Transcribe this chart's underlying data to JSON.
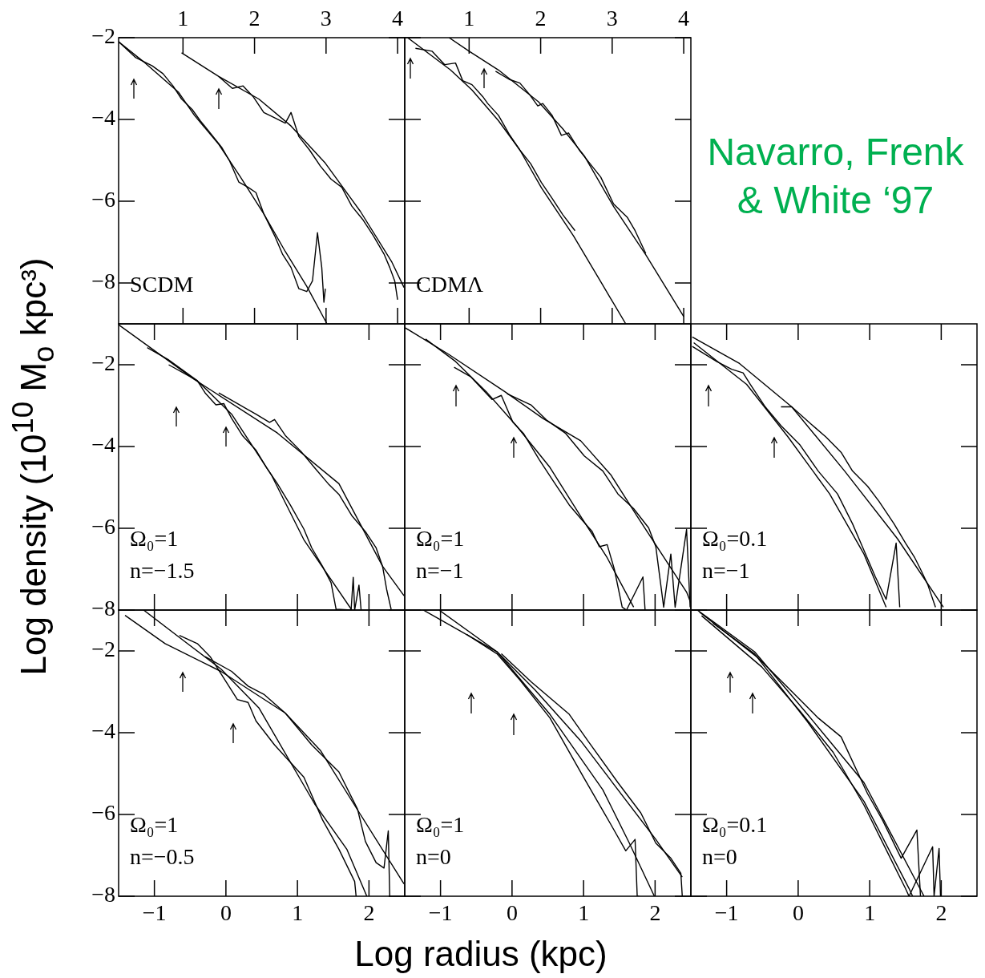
{
  "chart_data": [
    {
      "type": "line",
      "marker": "none",
      "xlim": [
        0.1,
        4.1
      ],
      "xticks": [
        1,
        2,
        3,
        4
      ],
      "ylim": [
        -9,
        -2
      ],
      "yticks": [
        {
          "value": -2,
          "label": "−2"
        },
        {
          "value": -4,
          "label": "−4"
        },
        {
          "value": -6,
          "label": "−6"
        },
        {
          "value": -8,
          "label": "−8"
        }
      ],
      "annotations": [
        "SCDM"
      ],
      "series": [
        {
          "color": "#000000",
          "x": [
            0.1,
            0.45,
            0.94,
            1.16,
            1.5,
            1.8,
            2.13,
            2.43,
            2.73,
            3.01
          ],
          "values": [
            -2.1,
            -2.59,
            -3.34,
            -3.9,
            -4.61,
            -5.4,
            -6.31,
            -7.23,
            -8.08,
            -8.99
          ]
        },
        {
          "color": "#000000",
          "x": [
            0.1,
            0.34,
            0.57,
            0.72,
            0.86,
            0.98,
            1.13,
            1.24,
            1.39,
            1.54,
            1.65,
            1.78,
            1.91,
            2.02,
            2.13,
            2.28,
            2.39,
            2.51,
            2.62,
            2.73,
            2.81,
            2.88,
            2.94,
            2.97,
            2.99
          ],
          "values": [
            -2.1,
            -2.49,
            -2.69,
            -2.88,
            -3.18,
            -3.5,
            -3.76,
            -4.03,
            -4.35,
            -4.68,
            -5.01,
            -5.53,
            -5.66,
            -5.79,
            -6.31,
            -6.84,
            -7.29,
            -7.62,
            -8.14,
            -8.21,
            -7.95,
            -6.77,
            -7.62,
            -8.47,
            -8.14
          ]
        },
        {
          "color": "#000000",
          "x": [
            0.98,
            1.5,
            2.06,
            2.51,
            2.99,
            3.48,
            3.92,
            4.09
          ],
          "values": [
            -2.37,
            -2.95,
            -3.5,
            -4.16,
            -5.07,
            -6.25,
            -7.49,
            -8.11
          ]
        },
        {
          "color": "#000000",
          "x": [
            1.5,
            1.69,
            1.84,
            1.98,
            2.13,
            2.28,
            2.43,
            2.51,
            2.62,
            2.77,
            2.92,
            3.07,
            3.22,
            3.36,
            3.51,
            3.66,
            3.81,
            3.89,
            3.96,
            4.0
          ],
          "values": [
            -2.95,
            -3.24,
            -3.18,
            -3.44,
            -3.83,
            -3.96,
            -4.09,
            -3.83,
            -4.42,
            -4.75,
            -5.14,
            -5.46,
            -5.66,
            -6.12,
            -6.44,
            -6.84,
            -7.29,
            -7.62,
            -7.95,
            -8.41
          ]
        }
      ]
    },
    {
      "type": "line",
      "marker": "none",
      "tick_labels": "x",
      "title": "Navarro, Frenk & White ‘97",
      "xlim": [
        0.1,
        4.1
      ],
      "xticks": [
        1,
        2,
        3,
        4
      ],
      "ylim": [
        -9,
        -2
      ],
      "yticks": [
        {
          "value": -2,
          "label": null
        },
        {
          "value": -4,
          "label": null
        },
        {
          "value": -6,
          "label": null
        },
        {
          "value": -8,
          "label": null
        }
      ],
      "annotations": [
        "CDMΛ"
      ],
      "series": [
        {
          "color": "#000000",
          "x": [
            0.14,
            0.74,
            1.04,
            1.41,
            1.71,
            2.01,
            2.46,
            2.84,
            3.19
          ],
          "values": [
            -2.0,
            -2.79,
            -3.28,
            -4.03,
            -4.75,
            -5.67,
            -6.85,
            -7.97,
            -9.0
          ]
        },
        {
          "color": "#000000",
          "x": [
            0.25,
            0.48,
            0.66,
            0.81,
            0.91,
            1.04,
            1.19,
            1.26,
            1.41,
            1.56,
            1.71,
            1.86,
            2.01,
            2.16,
            2.31,
            2.48
          ],
          "values": [
            -2.26,
            -2.33,
            -2.66,
            -2.62,
            -3.05,
            -3.15,
            -3.44,
            -3.61,
            -3.9,
            -4.36,
            -4.75,
            -5.08,
            -5.54,
            -5.93,
            -6.33,
            -6.72
          ]
        },
        {
          "color": "#000000",
          "x": [
            0.72,
            1.0,
            1.41,
            1.97,
            2.31,
            2.61,
            3.02,
            3.47,
            4.0
          ],
          "values": [
            -2.0,
            -2.33,
            -2.79,
            -3.57,
            -4.23,
            -4.89,
            -6.13,
            -7.31,
            -8.82
          ]
        },
        {
          "color": "#000000",
          "x": [
            1.37,
            1.56,
            1.71,
            1.84,
            1.96,
            2.03,
            2.16,
            2.29,
            2.39,
            2.54,
            2.69,
            2.84,
            3.02,
            3.21,
            3.32,
            3.47
          ],
          "values": [
            -2.82,
            -3.02,
            -3.11,
            -3.38,
            -3.67,
            -3.61,
            -3.9,
            -4.39,
            -4.33,
            -4.75,
            -5.08,
            -5.41,
            -6.07,
            -6.39,
            -6.72,
            -7.28
          ]
        }
      ]
    },
    {
      "type": "line",
      "marker": "none",
      "tick_labels": "y",
      "ylabel": "Log density (10$^{10}$ M$_{o}$ kpc³)",
      "xlim": [
        -1.5,
        2.5
      ],
      "xticks": [
        {
          "value": -1,
          "label": null
        },
        {
          "value": 0,
          "label": null
        },
        {
          "value": 1,
          "label": null
        },
        {
          "value": 2,
          "label": null
        }
      ],
      "ylim": [
        -8,
        -1
      ],
      "yticks": [
        {
          "value": -2,
          "label": "−2"
        },
        {
          "value": -4,
          "label": "−4"
        },
        {
          "value": -6,
          "label": "−6"
        },
        {
          "value": -8,
          "label": "−8"
        }
      ],
      "annotations": [
        "Ω₀=1",
        "n=−1.5"
      ],
      "series": [
        {
          "color": "#000000",
          "x": [
            -1.5,
            -0.44,
            0.72,
            1.58,
            2.19,
            2.49
          ],
          "values": [
            -1.02,
            -2.36,
            -3.67,
            -4.91,
            -6.93,
            -7.65
          ]
        },
        {
          "color": "#000000",
          "x": [
            -0.8,
            -0.4,
            0.08,
            0.64,
            1.09,
            1.76
          ],
          "values": [
            -2.0,
            -2.39,
            -3.21,
            -4.71,
            -6.28,
            -8.0
          ]
        },
        {
          "color": "#000000",
          "x": [
            -1.1,
            -0.81,
            -0.4,
            -0.29,
            -0.14,
            -0.03,
            0.08,
            0.23,
            0.42,
            0.57,
            0.72,
            0.9,
            1.09,
            1.2,
            1.35,
            1.47,
            1.54,
            1.75,
            1.78,
            1.8,
            1.86,
            1.89
          ],
          "values": [
            -1.58,
            -1.87,
            -2.39,
            -2.69,
            -2.98,
            -2.95,
            -3.31,
            -3.73,
            -4.09,
            -4.52,
            -4.91,
            -5.43,
            -6.02,
            -6.48,
            -6.93,
            -7.33,
            -7.98,
            -8.0,
            -7.2,
            -8.0,
            -7.39,
            -8.0
          ]
        },
        {
          "color": "#000000",
          "x": [
            -0.1,
            0.16,
            0.42,
            0.61,
            0.68,
            0.83,
            1.05,
            1.24,
            1.43,
            1.58,
            1.76,
            1.95,
            2.1,
            2.19,
            2.25,
            2.31
          ],
          "values": [
            -2.69,
            -2.95,
            -3.21,
            -3.41,
            -3.34,
            -3.73,
            -4.12,
            -4.52,
            -4.91,
            -5.17,
            -5.69,
            -6.08,
            -6.48,
            -6.93,
            -7.52,
            -7.98
          ]
        }
      ]
    },
    {
      "type": "line",
      "marker": "none",
      "tick_labels": false,
      "xlim": [
        -1.5,
        2.5
      ],
      "xticks": [
        {
          "value": -1,
          "label": null
        },
        {
          "value": 0,
          "label": null
        },
        {
          "value": 1,
          "label": null
        },
        {
          "value": 2,
          "label": null
        }
      ],
      "ylim": [
        -8,
        -1
      ],
      "yticks": [
        {
          "value": -2,
          "label": null
        },
        {
          "value": -4,
          "label": null
        },
        {
          "value": -6,
          "label": null
        },
        {
          "value": -8,
          "label": null
        }
      ],
      "annotations": [
        "Ω₀=1",
        "n=−1"
      ],
      "series": [
        {
          "color": "#000000",
          "x": [
            -1.5,
            -0.89,
            -0.1,
            0.43,
            0.96,
            1.38,
            1.75,
            2.44,
            2.5
          ],
          "values": [
            -1.09,
            -1.74,
            -2.66,
            -3.31,
            -3.86,
            -4.69,
            -5.71,
            -7.56,
            -7.83
          ]
        },
        {
          "color": "#000000",
          "x": [
            -1.21,
            -0.79,
            -0.36,
            0.06,
            0.53,
            0.96,
            1.33,
            1.7
          ],
          "values": [
            -1.37,
            -1.92,
            -2.66,
            -3.49,
            -4.51,
            -5.71,
            -6.72,
            -7.93
          ]
        },
        {
          "color": "#000000",
          "x": [
            -0.81,
            -0.58,
            -0.28,
            -0.15,
            0.01,
            0.16,
            0.38,
            0.59,
            0.8,
            0.96,
            1.12,
            1.22,
            1.33,
            1.43,
            1.54,
            1.6,
            1.83,
            1.86
          ],
          "values": [
            -2.06,
            -2.29,
            -2.85,
            -2.75,
            -3.4,
            -3.68,
            -4.32,
            -4.88,
            -5.43,
            -5.76,
            -6.08,
            -6.45,
            -6.4,
            -7.0,
            -7.93,
            -8.0,
            -7.19,
            -8.0
          ]
        },
        {
          "color": "#000000",
          "x": [
            -0.07,
            0.27,
            0.48,
            0.75,
            1.01,
            1.27,
            1.48,
            1.7,
            1.91,
            2.01,
            2.12,
            2.22,
            2.28,
            2.44,
            2.49
          ],
          "values": [
            -2.71,
            -2.99,
            -3.35,
            -3.68,
            -4.23,
            -4.6,
            -5.16,
            -5.52,
            -5.99,
            -6.45,
            -7.93,
            -6.63,
            -7.93,
            -6.03,
            -7.93
          ]
        }
      ]
    },
    {
      "type": "line",
      "marker": "none",
      "tick_labels": false,
      "xlim": [
        -1.5,
        2.5
      ],
      "xticks": [
        {
          "value": -1,
          "label": null
        },
        {
          "value": 0,
          "label": null
        },
        {
          "value": 1,
          "label": null
        },
        {
          "value": 2,
          "label": null
        }
      ],
      "ylim": [
        -8,
        -1
      ],
      "yticks": [
        {
          "value": -2,
          "label": null
        },
        {
          "value": -4,
          "label": null
        },
        {
          "value": -6,
          "label": null
        },
        {
          "value": -8,
          "label": null
        }
      ],
      "annotations": [
        "Ω₀=0.1",
        "n=−1"
      ],
      "series": [
        {
          "color": "#000000",
          "x": [
            -1.48,
            -0.82,
            -0.09,
            0.65,
            1.39,
            2.03
          ],
          "values": [
            -1.32,
            -1.97,
            -3.03,
            -4.6,
            -6.26,
            -7.93
          ]
        },
        {
          "color": "#000000",
          "x": [
            -1.46,
            -0.72,
            -0.14,
            0.44,
            0.92,
            1.23
          ],
          "values": [
            -1.46,
            -2.48,
            -3.77,
            -5.16,
            -6.63,
            -7.93
          ]
        },
        {
          "color": "#000000",
          "x": [
            -1.48,
            -1.14,
            -0.93,
            -0.77,
            -0.67,
            -0.46,
            -0.24,
            0.02,
            0.28,
            0.55,
            0.76,
            0.92,
            1.08,
            1.23,
            1.37,
            1.42
          ],
          "values": [
            -1.55,
            -1.92,
            -2.11,
            -2.2,
            -2.48,
            -3.03,
            -3.49,
            -3.95,
            -4.6,
            -5.16,
            -5.89,
            -6.54,
            -7.19,
            -7.74,
            -6.36,
            -7.93
          ]
        },
        {
          "color": "#000000",
          "x": [
            -0.24,
            -0.09,
            0.18,
            0.39,
            0.6,
            0.76,
            0.97,
            1.13,
            1.34,
            1.5,
            1.63,
            1.71,
            1.81,
            1.92
          ],
          "values": [
            -3.03,
            -3.03,
            -3.45,
            -3.77,
            -4.14,
            -4.6,
            -4.97,
            -5.34,
            -5.89,
            -6.36,
            -6.72,
            -7.0,
            -7.37,
            -7.93
          ]
        }
      ]
    },
    {
      "type": "line",
      "marker": "none",
      "xlim": [
        -1.5,
        2.5
      ],
      "xticks": [
        {
          "value": -1,
          "label": "−1"
        },
        0,
        1,
        2
      ],
      "ylim": [
        -8,
        -1
      ],
      "yticks": [
        {
          "value": -2,
          "label": "−2"
        },
        {
          "value": -4,
          "label": "−4"
        },
        {
          "value": -6,
          "label": "−6"
        },
        {
          "value": -8,
          "label": "−8"
        }
      ],
      "annotations": [
        "Ω₀=1",
        "n=−0.5"
      ],
      "series": [
        {
          "color": "#000000",
          "x": [
            -1.41,
            -0.85,
            -0.07,
            0.83,
            1.32,
            1.88,
            2.49
          ],
          "values": [
            -1.13,
            -1.82,
            -2.5,
            -3.52,
            -4.43,
            -6.0,
            -7.7
          ]
        },
        {
          "color": "#000000",
          "x": [
            -1.15,
            -0.59,
            -0.07,
            0.46,
            1.24,
            1.69,
            1.97
          ],
          "values": [
            -1.0,
            -1.75,
            -2.44,
            -3.39,
            -5.74,
            -6.85,
            -8.0
          ]
        },
        {
          "color": "#000000",
          "x": [
            -0.65,
            -0.4,
            -0.22,
            0.16,
            0.31,
            0.42,
            0.68,
            1.09,
            1.35,
            1.58,
            1.8,
            1.82
          ],
          "values": [
            -1.62,
            -1.82,
            -2.14,
            -3.19,
            -3.26,
            -3.71,
            -4.3,
            -5.09,
            -6.13,
            -6.85,
            -7.64,
            -8.0
          ]
        },
        {
          "color": "#000000",
          "x": [
            -0.29,
            0.08,
            0.31,
            0.53,
            0.83,
            1.2,
            1.58,
            1.84,
            1.95,
            2.1,
            2.21,
            2.27,
            2.29
          ],
          "values": [
            -2.14,
            -2.5,
            -2.86,
            -3.06,
            -3.52,
            -4.3,
            -4.96,
            -5.87,
            -6.66,
            -7.18,
            -7.31,
            -6.4,
            -8.0
          ]
        }
      ]
    },
    {
      "type": "line",
      "marker": "none",
      "tick_labels": "x",
      "xlabel": "Log radius (kpc)",
      "xlim": [
        -1.5,
        2.5
      ],
      "xticks": [
        {
          "value": -1,
          "label": "−1"
        },
        0,
        1,
        2
      ],
      "ylim": [
        -8,
        -1
      ],
      "yticks": [
        {
          "value": -2,
          "label": null
        },
        {
          "value": -4,
          "label": null
        },
        {
          "value": -6,
          "label": null
        },
        {
          "value": -8,
          "label": null
        }
      ],
      "annotations": [
        "Ω₀=1",
        "n=0"
      ],
      "series": [
        {
          "color": "#000000",
          "x": [
            -1.24,
            -0.21,
            0.32,
            0.96,
            2.01,
            2.38
          ],
          "values": [
            -1.0,
            -2.02,
            -2.95,
            -4.2,
            -6.61,
            -7.53
          ]
        },
        {
          "color": "#000000",
          "x": [
            -1.02,
            -0.21,
            0.53,
            1.27,
            1.64,
            1.99
          ],
          "values": [
            -1.0,
            -2.02,
            -3.55,
            -5.4,
            -6.7,
            -8.0
          ]
        },
        {
          "color": "#000000",
          "x": [
            -0.63,
            -0.21,
            0.11,
            0.53,
            1.01,
            1.38,
            1.59,
            1.72,
            1.75,
            1.78
          ],
          "values": [
            -1.6,
            -2.07,
            -2.71,
            -3.64,
            -5.12,
            -6.24,
            -6.89,
            -6.61,
            -8.0,
            -8.0
          ]
        },
        {
          "color": "#000000",
          "x": [
            -0.15,
            0.27,
            0.8,
            1.06,
            1.48,
            1.8,
            2.01,
            2.22,
            2.36,
            2.38
          ],
          "values": [
            -2.07,
            -2.76,
            -3.55,
            -4.2,
            -5.22,
            -5.96,
            -6.7,
            -7.07,
            -7.44,
            -8.0
          ]
        }
      ]
    },
    {
      "type": "line",
      "marker": "none",
      "tick_labels": "x",
      "xlim": [
        -1.5,
        2.5
      ],
      "xticks": [
        {
          "value": -1,
          "label": "−1"
        },
        0,
        1,
        2
      ],
      "ylim": [
        -8,
        -1
      ],
      "yticks": [
        {
          "value": -2,
          "label": null
        },
        {
          "value": -4,
          "label": null
        },
        {
          "value": -6,
          "label": null
        },
        {
          "value": -8,
          "label": null
        }
      ],
      "annotations": [
        "Ω₀=0.1",
        "n=0"
      ],
      "series": [
        {
          "color": "#000000",
          "x": [
            -1.41,
            -0.61,
            0.13,
            0.92,
            1.76
          ],
          "values": [
            -1.0,
            -2.02,
            -3.55,
            -5.22,
            -8.0
          ]
        },
        {
          "color": "#000000",
          "x": [
            -1.19,
            -0.61,
            0.13,
            0.92,
            1.55,
            1.6
          ],
          "values": [
            -1.32,
            -2.07,
            -3.73,
            -5.68,
            -7.81,
            -8.0
          ]
        },
        {
          "color": "#000000",
          "x": [
            -1.38,
            -0.56,
            -0.14,
            0.28,
            0.6,
            0.97,
            1.18,
            1.44,
            1.66,
            1.71
          ],
          "values": [
            -1.05,
            -2.17,
            -2.9,
            -3.64,
            -4.1,
            -5.49,
            -6.14,
            -7.07,
            -6.38,
            -8.0
          ]
        },
        {
          "color": "#000000",
          "x": [
            -1.35,
            -0.51,
            0.02,
            0.49,
            0.92,
            1.29,
            1.5,
            1.55,
            1.88,
            1.9,
            1.97,
            1.99
          ],
          "values": [
            -1.14,
            -2.39,
            -3.46,
            -4.48,
            -5.77,
            -7.07,
            -7.81,
            -8.0,
            -6.79,
            -8.0,
            -6.83,
            -8.0
          ]
        }
      ]
    }
  ]
}
